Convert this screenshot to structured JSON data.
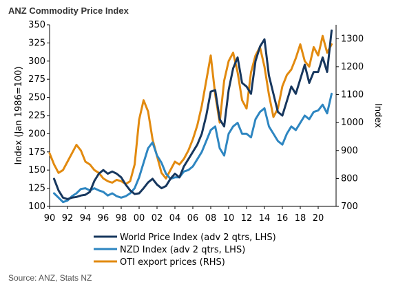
{
  "chart_data": {
    "type": "line",
    "title": "ANZ Commodity Price Index",
    "ylabel": "Index (Jan 1986=100)",
    "y2label": "Index",
    "ylim": [
      100,
      350
    ],
    "y2lim": [
      700,
      1350
    ],
    "xlim": [
      1990,
      2022
    ],
    "x_ticks": [
      1990,
      1992,
      1994,
      1996,
      1998,
      2000,
      2002,
      2004,
      2006,
      2008,
      2010,
      2012,
      2014,
      2016,
      2018,
      2020
    ],
    "x_tick_labels": [
      "90",
      "92",
      "94",
      "96",
      "98",
      "00",
      "02",
      "04",
      "06",
      "08",
      "10",
      "12",
      "14",
      "16",
      "18",
      "20"
    ],
    "y_ticks": [
      100,
      125,
      150,
      175,
      200,
      225,
      250,
      275,
      300,
      325,
      350
    ],
    "y_tick_labels": [
      "100",
      "125",
      "150",
      "175",
      "200",
      "225",
      "250",
      "275",
      "300",
      "325",
      "350"
    ],
    "y2_ticks": [
      700,
      800,
      900,
      1000,
      1100,
      1200,
      1300
    ],
    "y2_tick_labels": [
      "700",
      "800",
      "900",
      "1000",
      "1100",
      "1200",
      "1300"
    ],
    "grid": false,
    "legend_position": "bottom",
    "source": "Source: ANZ, Stats NZ",
    "series": [
      {
        "name": "World Price Index (adv 2 qtrs, LHS)",
        "axis": "left",
        "color": "#17375e",
        "x": [
          1990.5,
          1991,
          1991.5,
          1992,
          1992.5,
          1993,
          1993.5,
          1994,
          1994.5,
          1995,
          1995.5,
          1996,
          1996.5,
          1997,
          1997.5,
          1998,
          1998.5,
          1999,
          1999.5,
          2000,
          2000.5,
          2001,
          2001.5,
          2002,
          2002.5,
          2003,
          2003.5,
          2004,
          2004.5,
          2005,
          2005.5,
          2006,
          2006.5,
          2007,
          2007.5,
          2008,
          2008.5,
          2009,
          2009.5,
          2010,
          2010.5,
          2011,
          2011.5,
          2012,
          2012.5,
          2013,
          2013.5,
          2014,
          2014.5,
          2015,
          2015.5,
          2016,
          2016.5,
          2017,
          2017.5,
          2018,
          2018.5,
          2019,
          2019.5,
          2020,
          2020.5,
          2021,
          2021.5
        ],
        "values": [
          138,
          122,
          112,
          110,
          112,
          113,
          115,
          116,
          120,
          135,
          145,
          150,
          145,
          148,
          145,
          140,
          130,
          122,
          117,
          118,
          125,
          133,
          138,
          130,
          125,
          128,
          138,
          145,
          140,
          155,
          165,
          175,
          185,
          200,
          225,
          258,
          260,
          220,
          210,
          260,
          290,
          305,
          270,
          265,
          255,
          300,
          320,
          330,
          280,
          255,
          230,
          225,
          245,
          265,
          255,
          275,
          295,
          270,
          285,
          285,
          305,
          285,
          342
        ]
      },
      {
        "name": "NZD Index (adv 2 qtrs, LHS)",
        "axis": "left",
        "color": "#2e86c1",
        "x": [
          1990.5,
          1991,
          1991.5,
          1992,
          1992.5,
          1993,
          1993.5,
          1994,
          1994.5,
          1995,
          1995.5,
          1996,
          1996.5,
          1997,
          1997.5,
          1998,
          1998.5,
          1999,
          1999.5,
          2000,
          2000.5,
          2001,
          2001.5,
          2002,
          2002.5,
          2003,
          2003.5,
          2004,
          2004.5,
          2005,
          2005.5,
          2006,
          2006.5,
          2007,
          2007.5,
          2008,
          2008.5,
          2009,
          2009.5,
          2010,
          2010.5,
          2011,
          2011.5,
          2012,
          2012.5,
          2013,
          2013.5,
          2014,
          2014.5,
          2015,
          2015.5,
          2016,
          2016.5,
          2017,
          2017.5,
          2018,
          2018.5,
          2019,
          2019.5,
          2020,
          2020.5,
          2021,
          2021.5
        ],
        "values": [
          118,
          112,
          106,
          108,
          114,
          118,
          124,
          125,
          122,
          125,
          122,
          120,
          115,
          118,
          114,
          112,
          114,
          118,
          125,
          140,
          160,
          180,
          188,
          170,
          160,
          145,
          138,
          140,
          140,
          148,
          150,
          155,
          165,
          175,
          190,
          205,
          210,
          180,
          170,
          200,
          210,
          215,
          200,
          200,
          195,
          220,
          230,
          235,
          210,
          200,
          190,
          185,
          200,
          210,
          205,
          215,
          225,
          220,
          230,
          232,
          240,
          228,
          255
        ]
      },
      {
        "name": "OTI export prices (RHS)",
        "axis": "right",
        "color": "#e28a0f",
        "x": [
          1990,
          1990.5,
          1991,
          1991.5,
          1992,
          1992.5,
          1993,
          1993.5,
          1994,
          1994.5,
          1995,
          1995.5,
          1996,
          1996.5,
          1997,
          1997.5,
          1998,
          1998.5,
          1999,
          1999.5,
          2000,
          2000.5,
          2001,
          2001.5,
          2002,
          2002.5,
          2003,
          2003.5,
          2004,
          2004.5,
          2005,
          2005.5,
          2006,
          2006.5,
          2007,
          2007.5,
          2008,
          2008.5,
          2009,
          2009.5,
          2010,
          2010.5,
          2011,
          2011.5,
          2012,
          2012.5,
          2013,
          2013.5,
          2014,
          2014.5,
          2015,
          2015.5,
          2016,
          2016.5,
          2017,
          2017.5,
          2018,
          2018.5,
          2019,
          2019.5,
          2020,
          2020.5,
          2021,
          2021.5
        ],
        "values": [
          890,
          850,
          820,
          830,
          860,
          890,
          920,
          900,
          860,
          850,
          830,
          820,
          800,
          790,
          785,
          795,
          790,
          780,
          790,
          850,
          1010,
          1080,
          1040,
          940,
          880,
          820,
          800,
          830,
          860,
          850,
          870,
          900,
          940,
          990,
          1060,
          1150,
          1240,
          1100,
          1000,
          1150,
          1220,
          1250,
          1180,
          1080,
          1050,
          1180,
          1240,
          1270,
          1200,
          1100,
          1020,
          1050,
          1130,
          1170,
          1190,
          1230,
          1280,
          1220,
          1200,
          1270,
          1240,
          1310,
          1250,
          1280
        ]
      }
    ]
  }
}
